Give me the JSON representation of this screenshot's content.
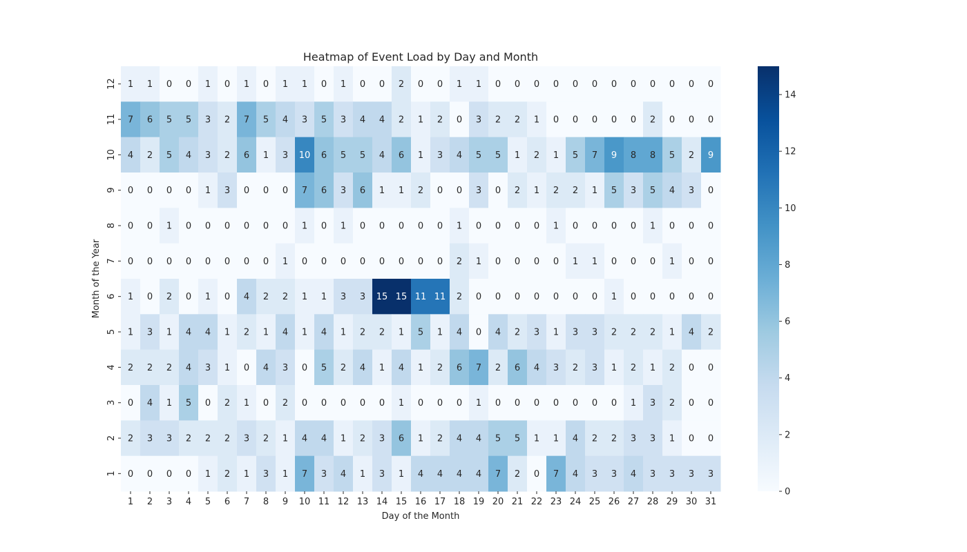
{
  "chart_data": {
    "type": "heatmap",
    "title": "Heatmap of Event Load by Day and Month",
    "xlabel": "Day of the Month",
    "ylabel": "Month of the Year",
    "x_categories": [
      "1",
      "2",
      "3",
      "4",
      "5",
      "6",
      "7",
      "8",
      "9",
      "10",
      "11",
      "12",
      "13",
      "14",
      "15",
      "16",
      "17",
      "18",
      "19",
      "20",
      "21",
      "22",
      "23",
      "24",
      "25",
      "26",
      "27",
      "28",
      "29",
      "30",
      "31"
    ],
    "y_categories": [
      "12",
      "11",
      "10",
      "9",
      "8",
      "7",
      "6",
      "5",
      "4",
      "3",
      "2",
      "1"
    ],
    "values": [
      [
        1,
        1,
        0,
        0,
        1,
        0,
        1,
        0,
        1,
        1,
        0,
        1,
        0,
        0,
        2,
        0,
        0,
        1,
        1,
        0,
        0,
        0,
        0,
        0,
        0,
        0,
        0,
        0,
        0,
        0,
        0
      ],
      [
        7,
        6,
        5,
        5,
        3,
        2,
        7,
        5,
        4,
        3,
        5,
        3,
        4,
        4,
        2,
        1,
        2,
        0,
        3,
        2,
        2,
        1,
        0,
        0,
        0,
        0,
        0,
        2,
        0,
        0,
        0
      ],
      [
        4,
        2,
        5,
        4,
        3,
        2,
        6,
        1,
        3,
        10,
        6,
        5,
        5,
        4,
        6,
        1,
        3,
        4,
        5,
        5,
        1,
        2,
        1,
        5,
        7,
        9,
        8,
        8,
        5,
        2,
        9
      ],
      [
        0,
        0,
        0,
        0,
        1,
        3,
        0,
        0,
        0,
        7,
        6,
        3,
        6,
        1,
        1,
        2,
        0,
        0,
        3,
        0,
        2,
        1,
        2,
        2,
        1,
        5,
        3,
        5,
        4,
        3,
        0
      ],
      [
        0,
        0,
        1,
        0,
        0,
        0,
        0,
        0,
        0,
        1,
        0,
        1,
        0,
        0,
        0,
        0,
        0,
        1,
        0,
        0,
        0,
        0,
        1,
        0,
        0,
        0,
        0,
        1,
        0,
        0,
        0
      ],
      [
        0,
        0,
        0,
        0,
        0,
        0,
        0,
        0,
        1,
        0,
        0,
        0,
        0,
        0,
        0,
        0,
        0,
        2,
        1,
        0,
        0,
        0,
        0,
        1,
        1,
        0,
        0,
        0,
        1,
        0,
        0
      ],
      [
        1,
        0,
        2,
        0,
        1,
        0,
        4,
        2,
        2,
        1,
        1,
        3,
        3,
        15,
        15,
        11,
        11,
        2,
        0,
        0,
        0,
        0,
        0,
        0,
        0,
        1,
        0,
        0,
        0,
        0,
        0
      ],
      [
        1,
        3,
        1,
        4,
        4,
        1,
        2,
        1,
        4,
        1,
        4,
        1,
        2,
        2,
        1,
        5,
        1,
        4,
        0,
        4,
        2,
        3,
        1,
        3,
        3,
        2,
        2,
        2,
        1,
        4,
        2
      ],
      [
        2,
        2,
        2,
        4,
        3,
        1,
        0,
        4,
        3,
        0,
        5,
        2,
        4,
        1,
        4,
        1,
        2,
        6,
        7,
        2,
        6,
        4,
        3,
        2,
        3,
        1,
        2,
        1,
        2,
        0,
        0
      ],
      [
        0,
        4,
        1,
        5,
        0,
        2,
        1,
        0,
        2,
        0,
        0,
        0,
        0,
        0,
        1,
        0,
        0,
        0,
        1,
        0,
        0,
        0,
        0,
        0,
        0,
        0,
        1,
        3,
        2,
        0,
        0
      ],
      [
        2,
        3,
        3,
        2,
        2,
        2,
        3,
        2,
        1,
        4,
        4,
        1,
        2,
        3,
        6,
        1,
        2,
        4,
        4,
        5,
        5,
        1,
        1,
        4,
        2,
        2,
        3,
        3,
        1,
        0,
        0
      ],
      [
        0,
        0,
        0,
        0,
        1,
        2,
        1,
        3,
        1,
        7,
        3,
        4,
        1,
        3,
        1,
        4,
        4,
        4,
        4,
        7,
        2,
        0,
        7,
        4,
        3,
        3,
        4,
        3,
        3,
        3,
        3
      ]
    ],
    "colorbar": {
      "min": 0,
      "max": 15,
      "ticks": [
        0,
        2,
        4,
        6,
        8,
        10,
        12,
        14
      ],
      "colormap": [
        "#f7fbff",
        "#deebf7",
        "#c6dbef",
        "#9ecae1",
        "#6baed6",
        "#4292c6",
        "#2171b5",
        "#08519c",
        "#08306b"
      ]
    },
    "annotated": true,
    "grid": false
  }
}
